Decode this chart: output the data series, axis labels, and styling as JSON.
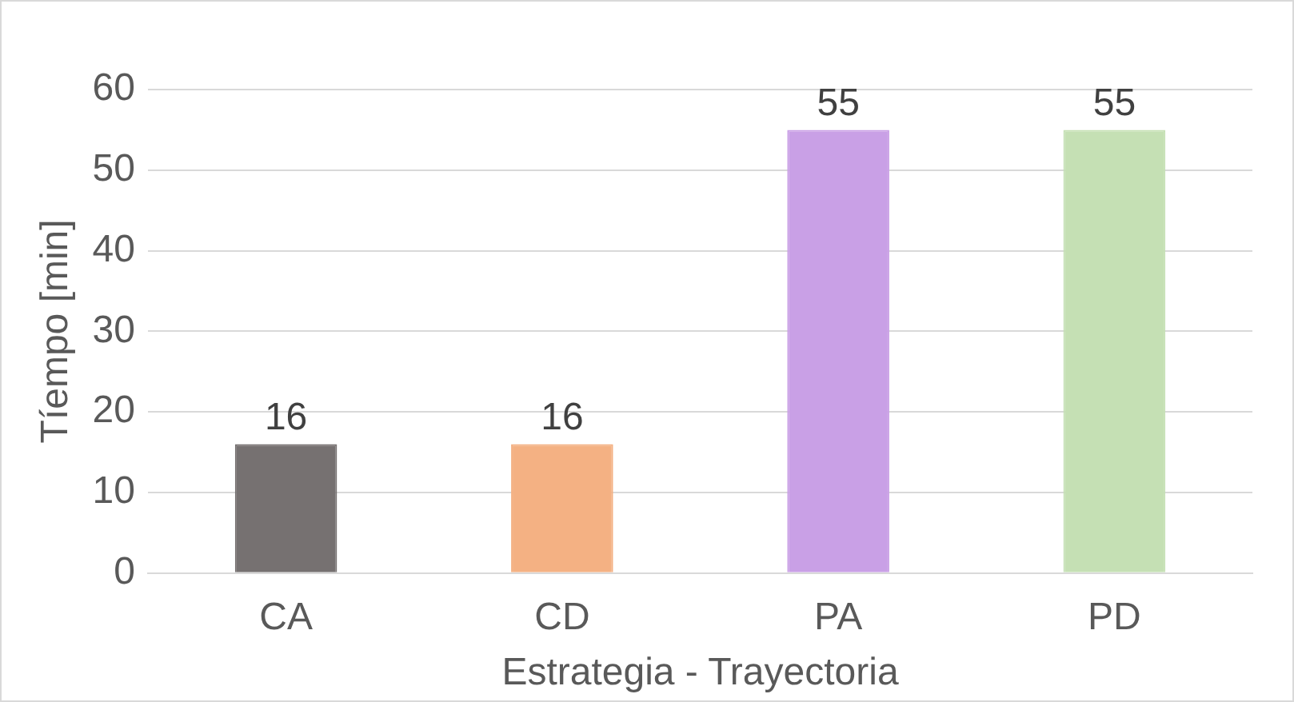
{
  "chart_data": {
    "type": "bar",
    "xlabel": "Estrategia - Trayectoria",
    "ylabel": "Tíempo [min]",
    "categories": [
      "CA",
      "CD",
      "PA",
      "PD"
    ],
    "values": [
      16,
      16,
      55,
      55
    ],
    "colors": [
      "#767171",
      "#f4b183",
      "#c9a0e6",
      "#c5e0b4"
    ],
    "ylim": [
      0,
      60
    ],
    "yticks": [
      0,
      10,
      20,
      30,
      40,
      50,
      60
    ],
    "grid": "y",
    "data_labels": true
  }
}
